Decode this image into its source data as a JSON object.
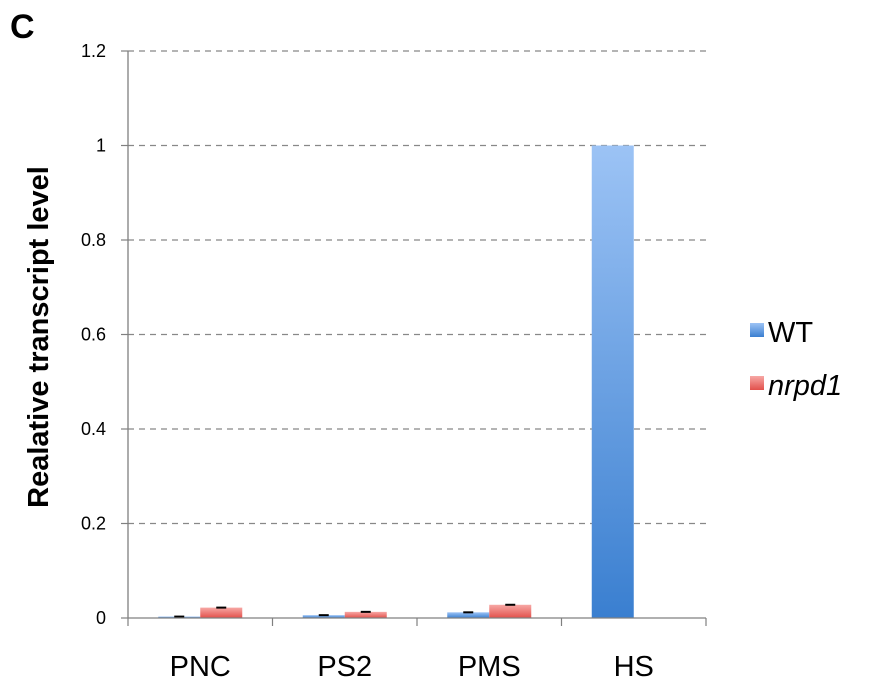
{
  "panel_label": "C",
  "colors": {
    "wt_top": "#9cc3f5",
    "wt_bottom": "#3a7fd0",
    "nrpd1_top": "#f7a8a5",
    "nrpd1_bottom": "#e2504b",
    "grid": "#888888",
    "axis": "#808080",
    "error_bar": "#000000"
  },
  "chart_data": {
    "type": "bar",
    "ylabel": "Realative transcript level",
    "xlabel": "",
    "ylim": [
      0,
      1.2
    ],
    "yticks": [
      0,
      0.2,
      0.4,
      0.6,
      0.8,
      1,
      1.2
    ],
    "ytick_labels": [
      "0",
      "0.2",
      "0.4",
      "0.6",
      "0.8",
      "1",
      "1.2"
    ],
    "grid": "horizontal dashed",
    "legend_position": "right",
    "categories": [
      "PNC",
      "PS2",
      "PMS",
      "HS"
    ],
    "series": [
      {
        "name": "WT",
        "italic": false,
        "values": [
          0.003,
          0.006,
          0.012,
          1.0
        ],
        "errors": [
          0.001,
          0.001,
          0.003,
          0
        ]
      },
      {
        "name": "nrpd1",
        "italic": true,
        "values": [
          0.022,
          0.013,
          0.028,
          0
        ],
        "errors": [
          0.001,
          0.001,
          0.001,
          0
        ]
      }
    ]
  }
}
